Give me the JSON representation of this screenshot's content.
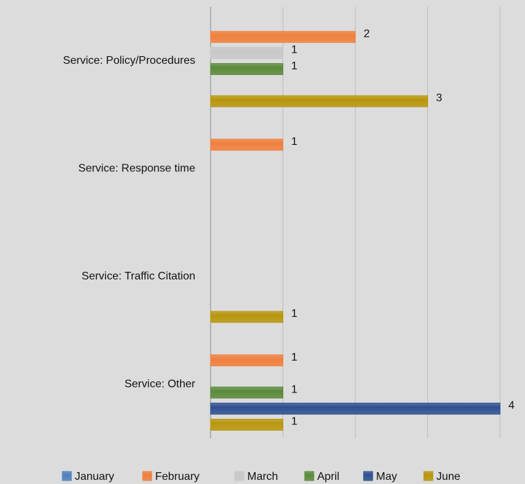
{
  "chart_data": {
    "type": "hbar",
    "categories": [
      "Service: Policy/Procedures",
      "Service: Response time",
      "Service: Traffic Citation",
      "Service: Other"
    ],
    "series": [
      {
        "name": "January",
        "color": "#4f81bd",
        "values": [
          null,
          null,
          null,
          null
        ]
      },
      {
        "name": "February",
        "color": "#f07f3c",
        "values": [
          2,
          1,
          null,
          1
        ]
      },
      {
        "name": "March",
        "color": "#c8c8c8",
        "values": [
          1,
          null,
          null,
          null
        ]
      },
      {
        "name": "April",
        "color": "#5a8a3a",
        "values": [
          1,
          null,
          null,
          1
        ]
      },
      {
        "name": "May",
        "color": "#2e4f8f",
        "values": [
          null,
          null,
          null,
          4
        ]
      },
      {
        "name": "June",
        "color": "#b8960c",
        "values": [
          3,
          null,
          1,
          1
        ]
      }
    ],
    "xlim": [
      0,
      4
    ],
    "xticks": [
      0,
      1,
      2,
      3,
      4
    ],
    "show_tick_labels": false,
    "grid": true,
    "legend": "bottom"
  }
}
